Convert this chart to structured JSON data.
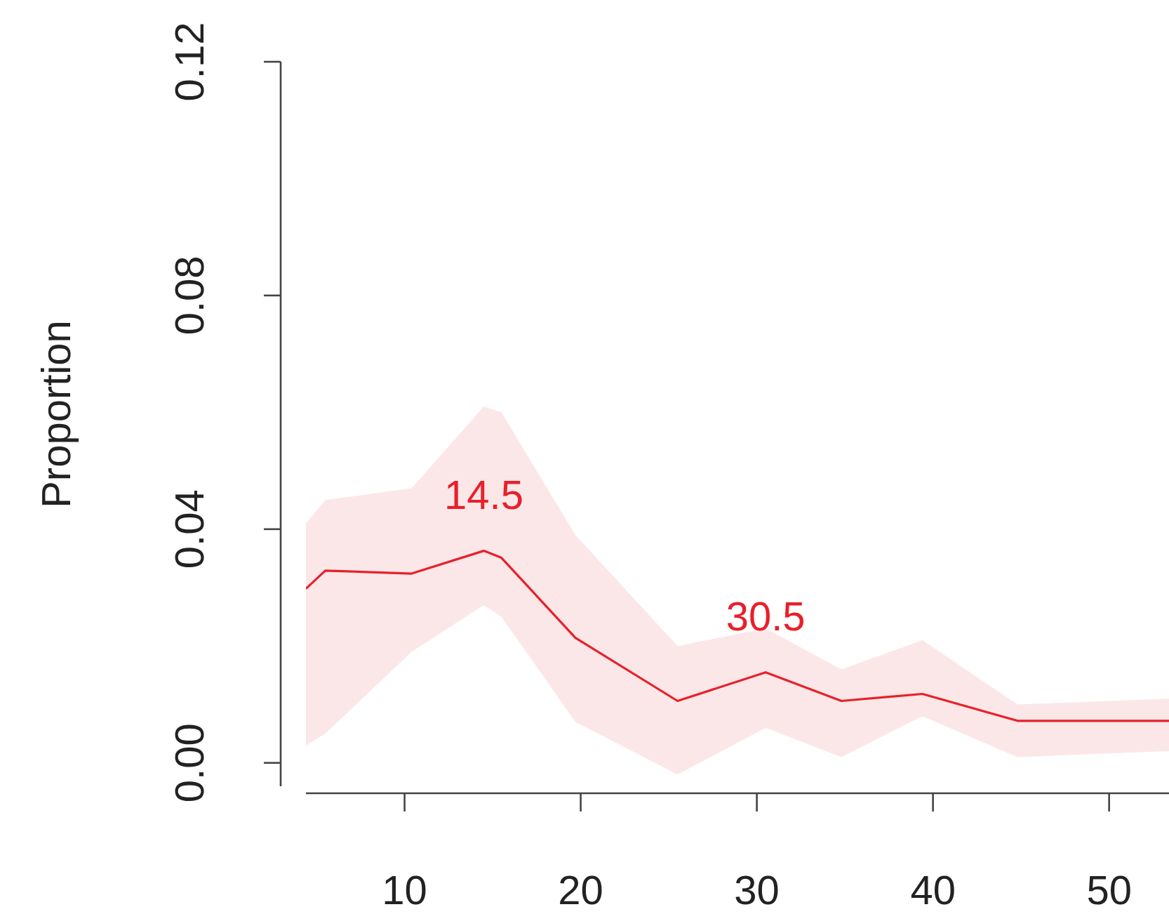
{
  "chart_data": {
    "type": "line",
    "ylabel": "Proportion",
    "x": [
      4.4,
      5.5,
      10.4,
      14.5,
      15.5,
      19.7,
      25.5,
      30.5,
      34.8,
      39.4,
      44.8,
      53.4
    ],
    "series": [
      {
        "color": "#e8202a",
        "values": [
          0.0298,
          0.0329,
          0.0324,
          0.0363,
          0.0351,
          0.0214,
          0.0106,
          0.0155,
          0.0106,
          0.0118,
          0.0072,
          0.0072
        ],
        "upper": [
          0.041,
          0.045,
          0.047,
          0.061,
          0.06,
          0.039,
          0.02,
          0.023,
          0.016,
          0.021,
          0.01,
          0.011
        ],
        "lower": [
          0.003,
          0.005,
          0.019,
          0.027,
          0.025,
          0.007,
          -0.002,
          0.006,
          0.001,
          0.008,
          0.001,
          0.002
        ]
      }
    ],
    "annotations": [
      {
        "text": "14.5",
        "x": 14.5,
        "y": 0.0363
      },
      {
        "text": "30.5",
        "x": 30.5,
        "y": 0.0155
      }
    ],
    "xlim": [
      4.4,
      53.4
    ],
    "ylim": [
      -0.004,
      0.12
    ],
    "xticks": [
      10,
      20,
      30,
      40,
      50
    ],
    "yticks": [
      {
        "value": 0,
        "label": "0.00"
      },
      {
        "value": 0.04,
        "label": "0.04"
      },
      {
        "value": 0.08,
        "label": "0.08"
      },
      {
        "value": 0.12,
        "label": "0.12"
      }
    ],
    "grid": false,
    "marker": "none",
    "line_style": "solid"
  }
}
